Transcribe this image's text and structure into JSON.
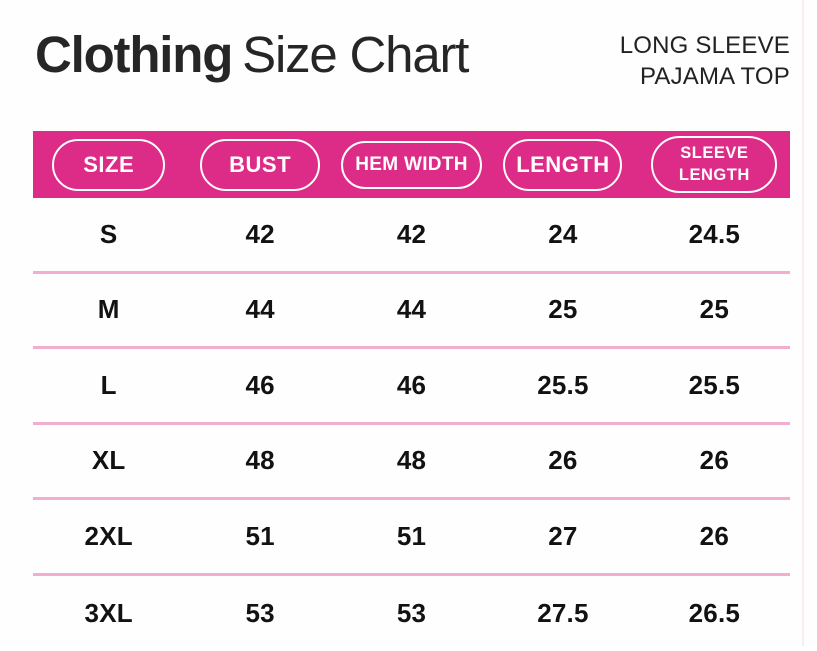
{
  "header": {
    "title_primary": "Clothing",
    "title_secondary": "Size Chart",
    "product_line1": "LONG SLEEVE",
    "product_line2": "PAJAMA TOP"
  },
  "colors": {
    "header_band_pink": "#dd2c87",
    "row_divider_pink": "#f2aece",
    "pill_outline": "#ffffff",
    "text_dark": "#1c1c1c"
  },
  "table": {
    "columns": [
      "SIZE",
      "BUST",
      "HEM WIDTH",
      "LENGTH",
      "SLEEVE LENGTH"
    ],
    "rows": [
      [
        "S",
        "42",
        "42",
        "24",
        "24.5"
      ],
      [
        "M",
        "44",
        "44",
        "25",
        "25"
      ],
      [
        "L",
        "46",
        "46",
        "25.5",
        "25.5"
      ],
      [
        "XL",
        "48",
        "48",
        "26",
        "26"
      ],
      [
        "2XL",
        "51",
        "51",
        "27",
        "26"
      ],
      [
        "3XL",
        "53",
        "53",
        "27.5",
        "26.5"
      ]
    ]
  },
  "chart_data": {
    "type": "table",
    "title": "Clothing Size Chart",
    "subtitle": "LONG SLEEVE PAJAMA TOP",
    "columns": [
      "SIZE",
      "BUST",
      "HEM WIDTH",
      "LENGTH",
      "SLEEVE LENGTH"
    ],
    "rows": [
      [
        "S",
        42,
        42,
        24,
        24.5
      ],
      [
        "M",
        44,
        44,
        25,
        25
      ],
      [
        "L",
        46,
        46,
        25.5,
        25.5
      ],
      [
        "XL",
        48,
        48,
        26,
        26
      ],
      [
        "2XL",
        51,
        51,
        27,
        26
      ],
      [
        "3XL",
        53,
        53,
        27.5,
        26.5
      ]
    ],
    "layout": {
      "header_style": "pink band with white outlined pill labels",
      "row_separators": "light pink horizontal rules",
      "grid": "horizontal only"
    }
  }
}
